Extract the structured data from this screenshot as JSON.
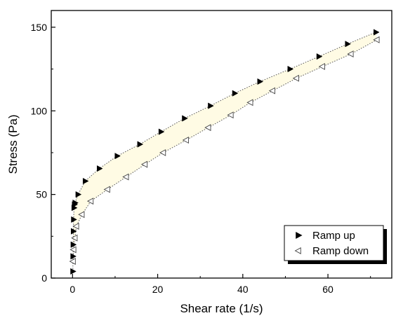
{
  "chart_data": {
    "type": "scatter",
    "title": "",
    "xlabel": "Shear rate (1/s)",
    "ylabel": "Stress (Pa)",
    "xlim": [
      -5,
      75
    ],
    "ylim": [
      0,
      160
    ],
    "xticks": [
      0,
      20,
      40,
      60
    ],
    "yticks": [
      0,
      50,
      100,
      150
    ],
    "grid": false,
    "legend_position": "bottom-right",
    "fill_between_series": true,
    "fill_color": "#fffbe4",
    "series": [
      {
        "name": "Ramp up",
        "marker": "filled-right-triangle",
        "color": "#000000",
        "x": [
          0.08,
          0.1,
          0.15,
          0.2,
          0.25,
          0.35,
          0.45,
          0.6,
          1.3,
          3.0,
          6.3,
          10.5,
          15.8,
          20.8,
          26.3,
          32.4,
          38.1,
          44.0,
          51.1,
          57.9,
          64.6,
          71.3
        ],
        "y": [
          4,
          13,
          20,
          28,
          35,
          42,
          44,
          45,
          50,
          58,
          65.5,
          73,
          80,
          87.5,
          95.5,
          103,
          110.5,
          117.5,
          125,
          132.5,
          140,
          147
        ]
      },
      {
        "name": "Ramp down",
        "marker": "open-left-triangle",
        "color": "#000000",
        "x": [
          71.5,
          65.4,
          58.7,
          52.6,
          47.0,
          41.8,
          37.2,
          31.9,
          26.7,
          21.3,
          17.0,
          12.6,
          8.2,
          4.3,
          2.2,
          0.9,
          0.55,
          0.25,
          0.12
        ],
        "y": [
          142.5,
          134,
          126.5,
          119.5,
          112,
          105,
          97.5,
          90,
          82.5,
          75,
          68,
          60.5,
          53,
          46,
          38,
          31,
          24,
          17,
          10
        ]
      }
    ]
  }
}
